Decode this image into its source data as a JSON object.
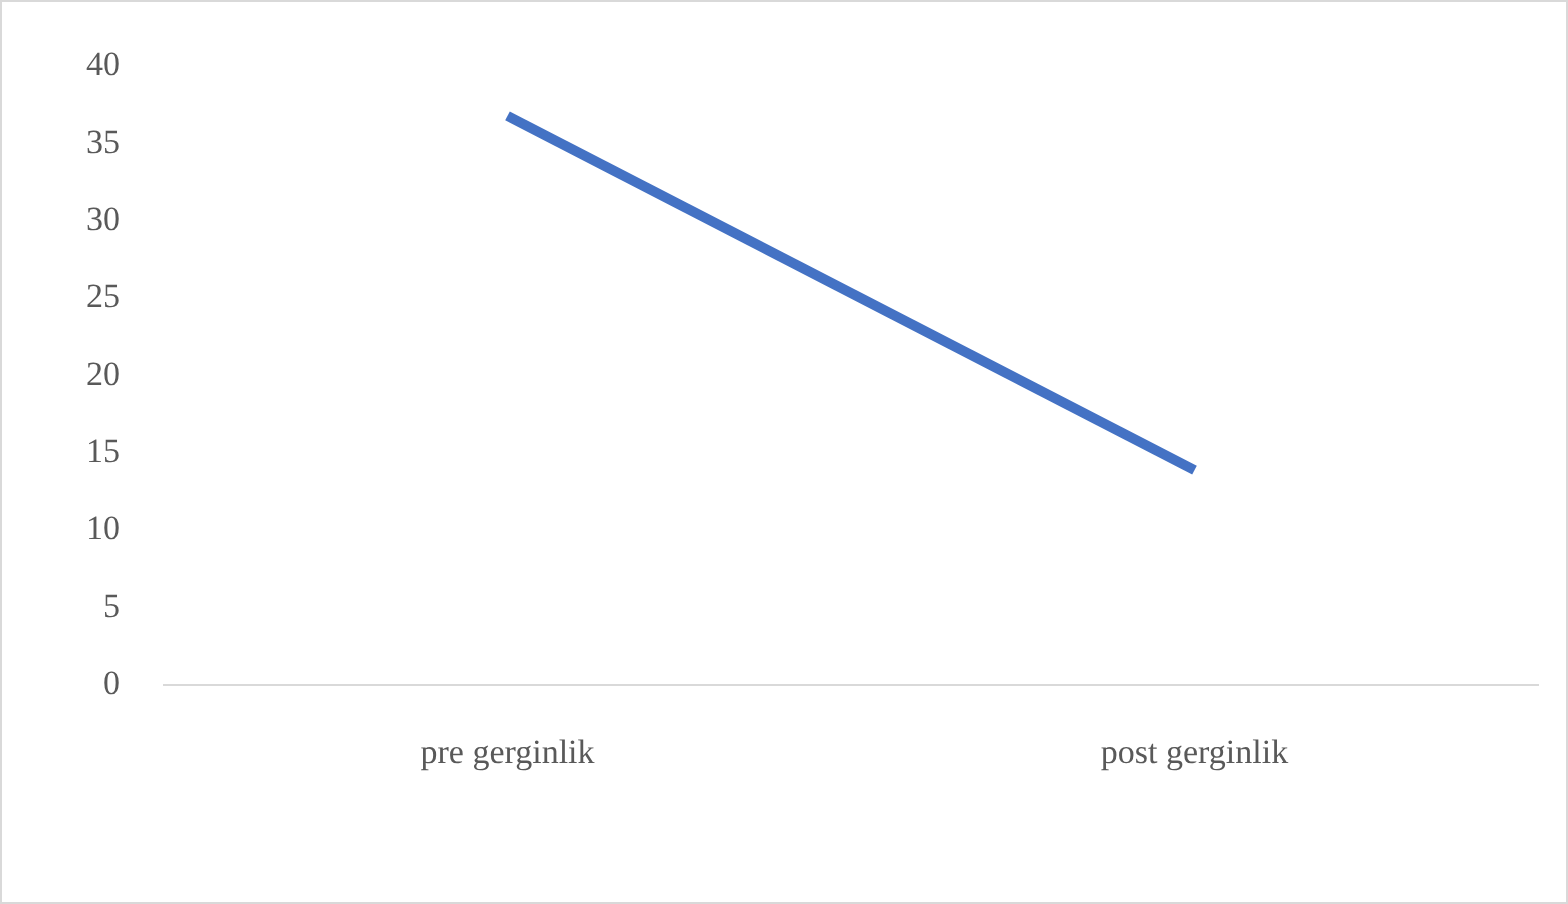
{
  "chart_data": {
    "type": "line",
    "categories": [
      "pre gerginlik",
      "post gerginlik"
    ],
    "series": [
      {
        "color": "#4472c4",
        "values": [
          36.8,
          13.9
        ]
      }
    ],
    "ylim": [
      0,
      40
    ],
    "yticks": [
      0,
      5,
      10,
      15,
      20,
      25,
      30,
      35,
      40
    ],
    "grid": false,
    "legend": false,
    "marker": "none",
    "line_style": "solid"
  }
}
